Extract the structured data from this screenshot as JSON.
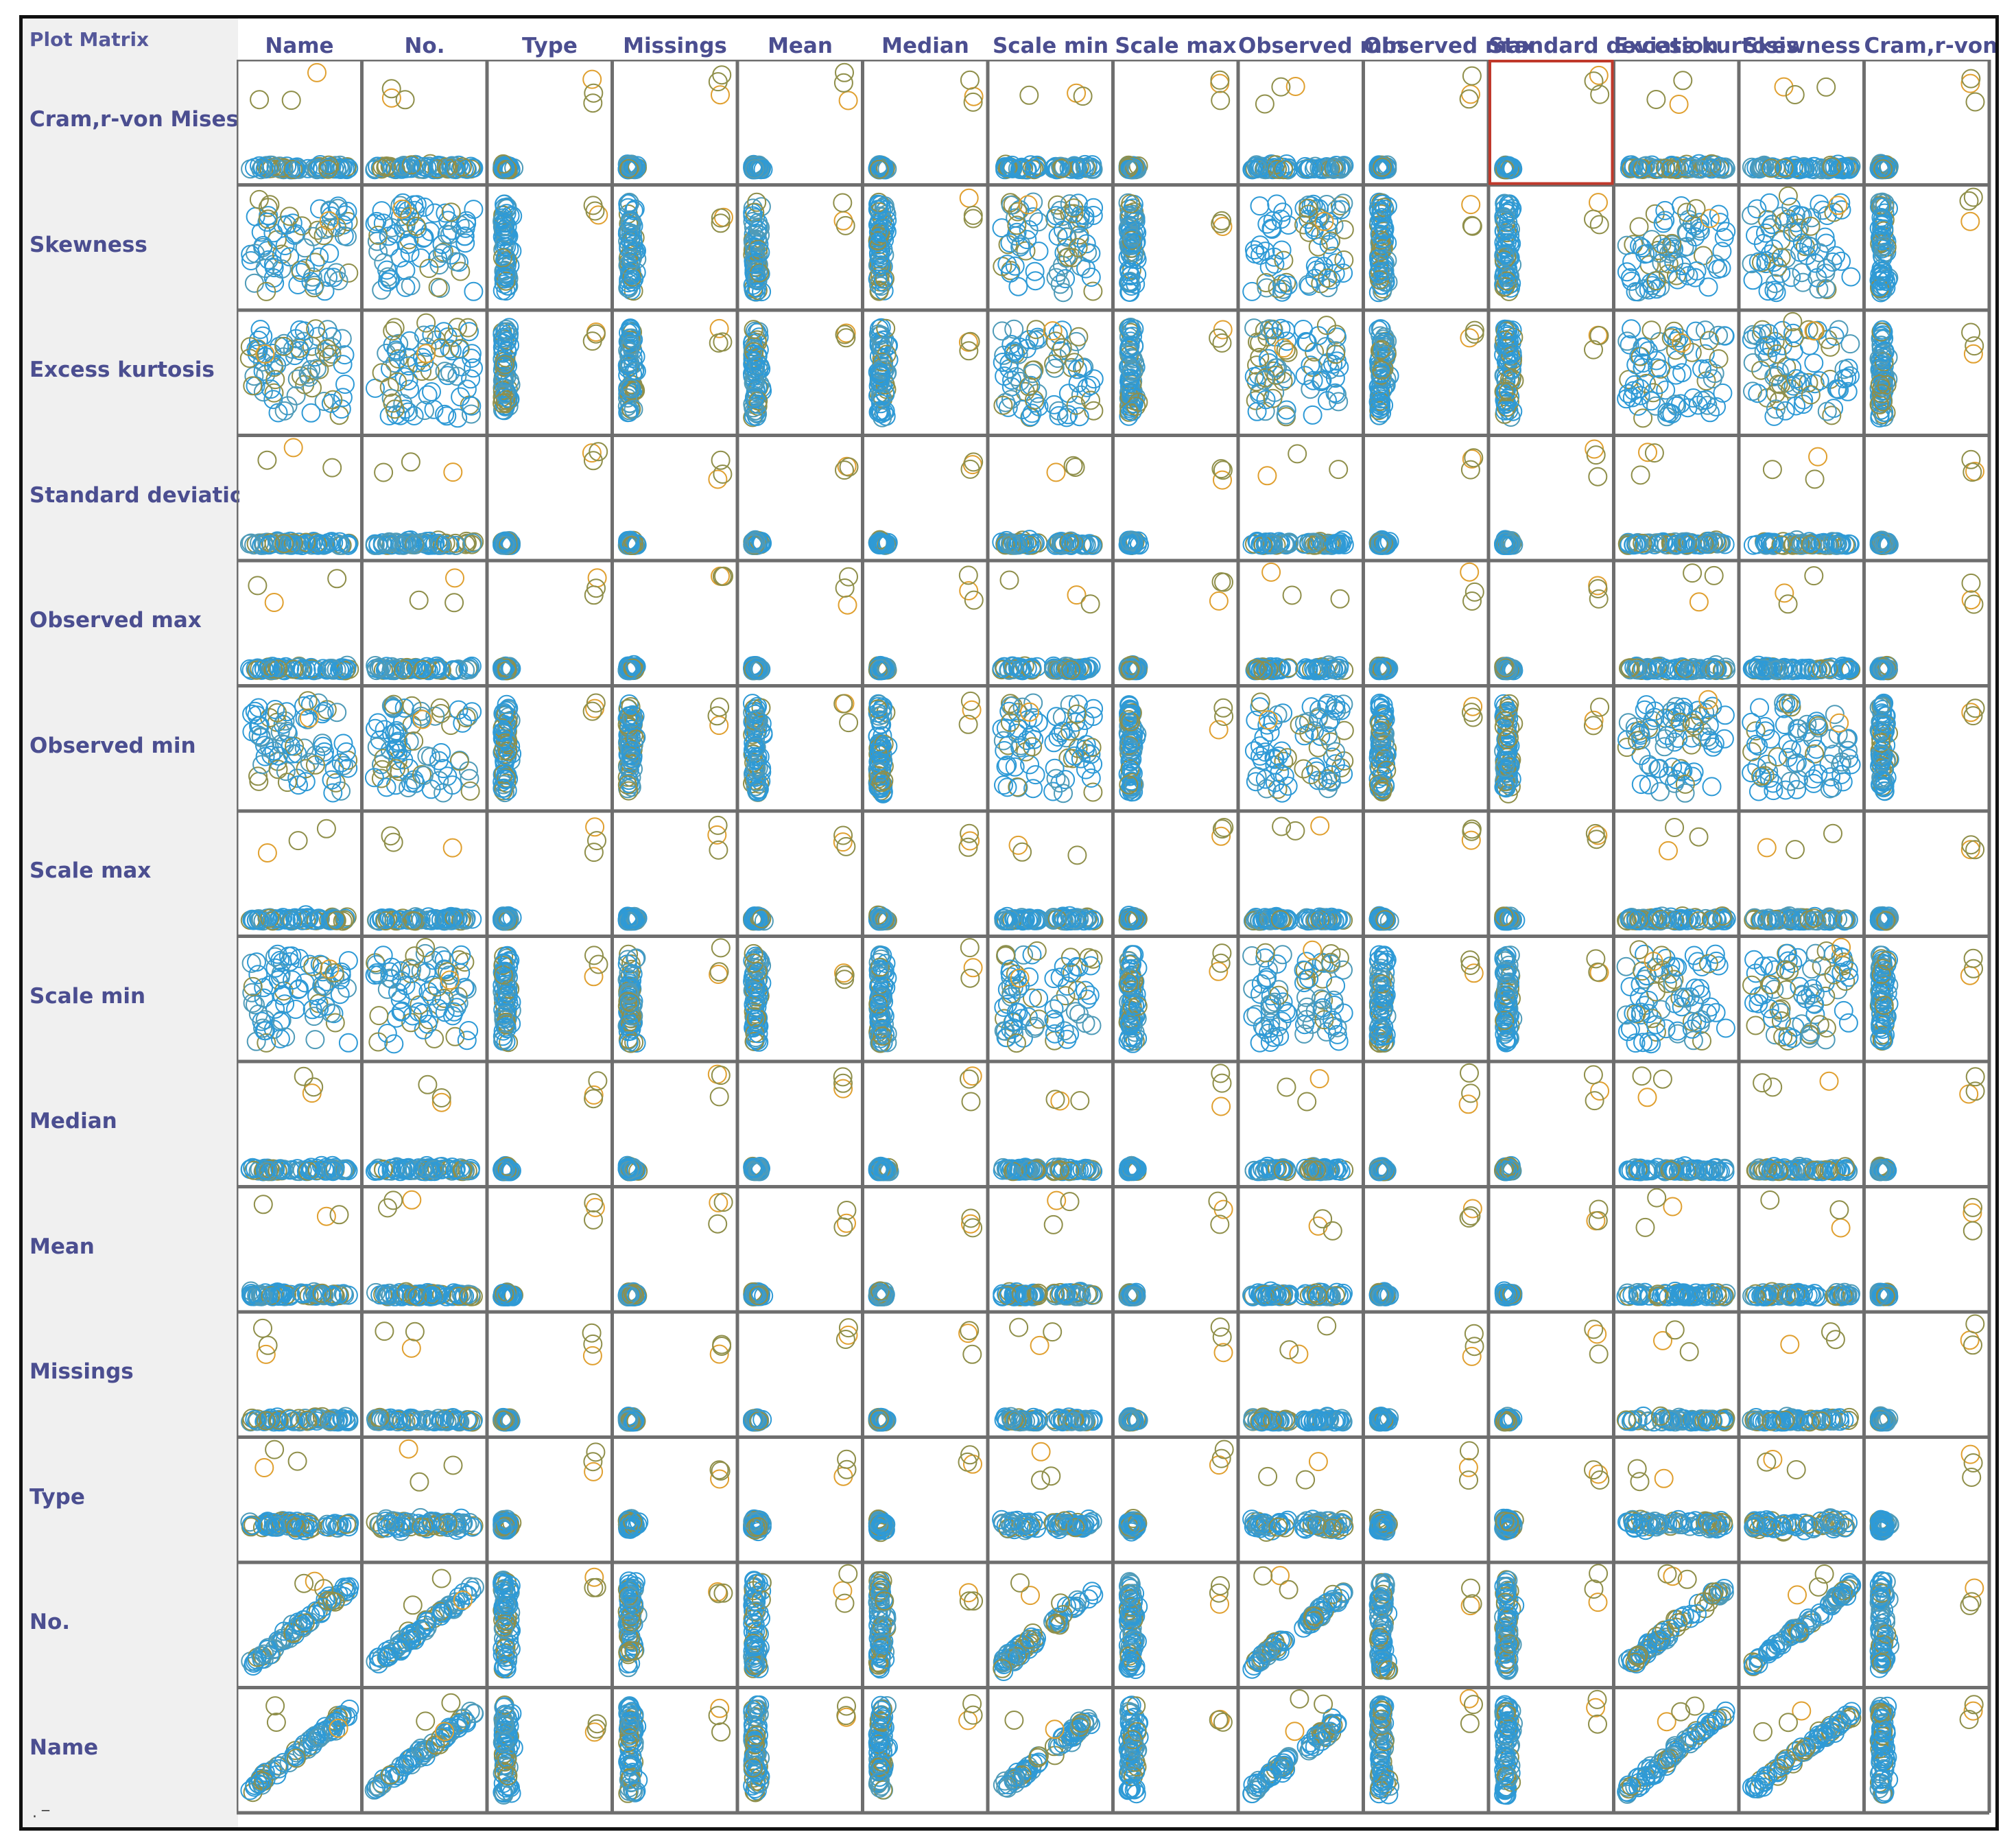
{
  "window": {
    "title": "Plot Matrix"
  },
  "columns": [
    "Name",
    "No.",
    "Type",
    "Missings",
    "Mean",
    "Median",
    "Scale min",
    "Scale max",
    "Observed min",
    "Observed max",
    "Standard deviation",
    "Excess kurtosis",
    "Skewness",
    "Cram,r-von Mises"
  ],
  "rows": [
    "Cram,r-von Mises",
    "Skewness",
    "Excess kurtosis",
    "Standard deviation",
    "Observed max",
    "Observed min",
    "Scale max",
    "Scale min",
    "Median",
    "Mean",
    "Missings",
    "Type",
    "No.",
    "Name"
  ],
  "selected_cell": {
    "row": "Cram,r-von Mises",
    "column": "Standard deviation"
  },
  "colors": {
    "point_blue": "#2e9ad6",
    "point_olive": "#8f8f4a",
    "point_orange": "#e0a030",
    "grid_line": "#6e6e6e",
    "header_text": "#4b4e90",
    "selection": "#c0392b",
    "panel_bg": "#f0f0f0"
  }
}
